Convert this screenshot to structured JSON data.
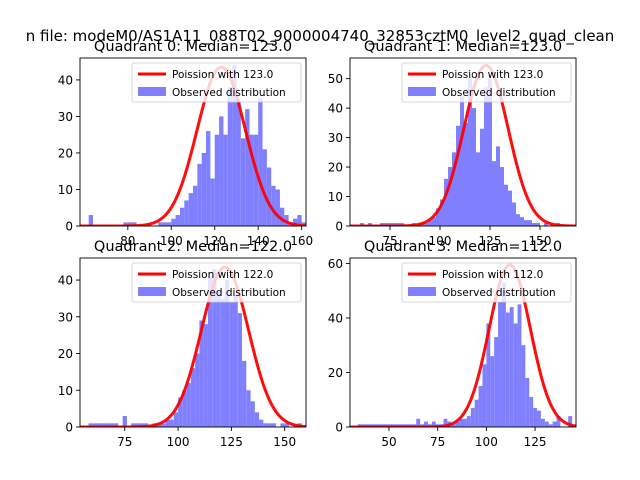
{
  "figure_title": "n file: modeM0/AS1A11_088T02_9000004740_32853cztM0_level2_quad_clean",
  "colors": {
    "hist": "#7f7fff",
    "curve": "#ff0000"
  },
  "chart_data": [
    {
      "type": "bar",
      "title": "Quadrant 0: Median=123.0",
      "legend": {
        "placement": "top-right",
        "curve_label": "Poission with 123.0",
        "hist_label": "Observed distribution"
      },
      "xlim": [
        58,
        162
      ],
      "ylim": [
        0,
        46
      ],
      "xticks": [
        80,
        100,
        120,
        140,
        160
      ],
      "yticks": [
        0,
        10,
        20,
        30,
        40
      ],
      "hist": {
        "start": 62,
        "bin_width": 2,
        "counts": [
          3,
          0,
          0,
          0,
          0,
          0,
          0,
          0,
          1,
          1,
          1,
          0,
          0,
          0,
          0,
          0,
          1,
          1,
          1,
          2,
          3,
          5,
          7,
          9,
          11,
          17,
          20,
          26,
          13,
          25,
          30,
          25,
          38,
          44,
          34,
          24,
          32,
          25,
          25,
          35,
          21,
          16,
          11,
          10,
          5,
          3,
          1,
          2,
          3,
          1
        ]
      },
      "curve": {
        "mean": 123,
        "sigma": 11.09,
        "scale": 43.5,
        "label": "Poission with 123.0"
      }
    },
    {
      "type": "bar",
      "title": "Quadrant 1: Median=123.0",
      "legend": {
        "placement": "top-right",
        "curve_label": "Poission with 123.0",
        "hist_label": "Observed distribution"
      },
      "xlim": [
        55,
        168
      ],
      "ylim": [
        0,
        57
      ],
      "xticks": [
        75,
        100,
        125,
        150
      ],
      "yticks": [
        0,
        10,
        20,
        30,
        40,
        50
      ],
      "hist": {
        "start": 60,
        "bin_width": 2,
        "counts": [
          1,
          0,
          1,
          0,
          0,
          1,
          1,
          1,
          1,
          1,
          1,
          0,
          0,
          1,
          0,
          1,
          1,
          2,
          3,
          6,
          9,
          16,
          20,
          25,
          34,
          44,
          35,
          50,
          40,
          25,
          33,
          47,
          50,
          22,
          27,
          20,
          14,
          12,
          8,
          4,
          3,
          2,
          2,
          1,
          1,
          0,
          1,
          0,
          0,
          1,
          0
        ]
      },
      "curve": {
        "mean": 123,
        "sigma": 11.09,
        "scale": 54.5,
        "label": "Poission with 123.0"
      }
    },
    {
      "type": "bar",
      "title": "Quadrant 2: Median=122.0",
      "legend": {
        "placement": "top-right",
        "curve_label": "Poission with 122.0",
        "hist_label": "Observed distribution"
      },
      "xlim": [
        54,
        160
      ],
      "ylim": [
        0,
        46
      ],
      "xticks": [
        75,
        100,
        125,
        150
      ],
      "yticks": [
        0,
        10,
        20,
        30,
        40
      ],
      "hist": {
        "start": 58,
        "bin_width": 2,
        "counts": [
          1,
          1,
          1,
          1,
          1,
          1,
          1,
          0,
          3,
          0,
          1,
          1,
          1,
          1,
          0,
          1,
          1,
          1,
          2,
          2,
          4,
          8,
          10,
          12,
          16,
          20,
          29,
          28,
          41,
          43,
          37,
          35,
          40,
          34,
          36,
          31,
          18,
          10,
          7,
          4,
          2,
          1,
          1,
          1,
          0,
          1,
          1,
          0,
          0,
          1
        ]
      },
      "curve": {
        "mean": 122,
        "sigma": 11.05,
        "scale": 43.5,
        "label": "Poission with 122.0"
      }
    },
    {
      "type": "bar",
      "title": "Quadrant 3: Median=112.0",
      "legend": {
        "placement": "top-right",
        "curve_label": "Poission with 112.0",
        "hist_label": "Observed distribution"
      },
      "xlim": [
        30,
        146
      ],
      "ylim": [
        0,
        62
      ],
      "xticks": [
        50,
        75,
        100,
        125
      ],
      "yticks": [
        0,
        20,
        40,
        60
      ],
      "hist": {
        "start": 34,
        "bin_width": 2,
        "counts": [
          1,
          1,
          1,
          1,
          1,
          1,
          1,
          1,
          1,
          1,
          1,
          1,
          1,
          1,
          1,
          3,
          1,
          2,
          1,
          2,
          1,
          1,
          3,
          2,
          1,
          2,
          3,
          3,
          4,
          7,
          10,
          15,
          23,
          38,
          26,
          33,
          46,
          53,
          42,
          44,
          38,
          45,
          30,
          18,
          11,
          7,
          6,
          3,
          2,
          1,
          2,
          4,
          0,
          0,
          4
        ]
      },
      "curve": {
        "mean": 112,
        "sigma": 10.58,
        "scale": 59.5,
        "label": "Poission with 112.0"
      }
    }
  ]
}
